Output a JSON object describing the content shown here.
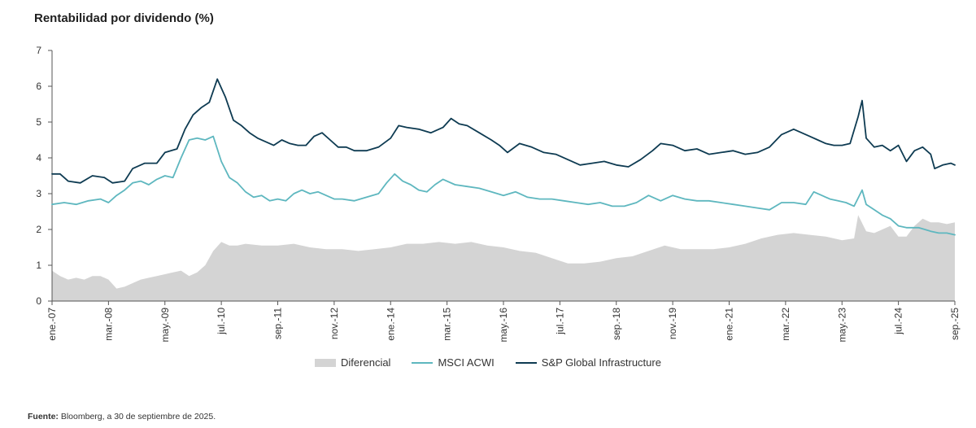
{
  "chart_data": {
    "type": "line",
    "title": "Rentabilidad por dividendo (%)",
    "xlabel": "",
    "ylabel": "",
    "ylim": [
      0,
      7
    ],
    "yticks": [
      "0",
      "1",
      "2",
      "3",
      "4",
      "5",
      "6",
      "7"
    ],
    "xticks": [
      "ene.-07",
      "mar.-08",
      "may.-09",
      "jul.-10",
      "sep.-11",
      "nov.-12",
      "ene.-14",
      "mar.-15",
      "may.-16",
      "jul.-17",
      "sep.-18",
      "nov.-19",
      "ene.-21",
      "mar.-22",
      "may.-23",
      "jul.-24",
      "sep.-25"
    ],
    "x_unit": "months since ene.-07",
    "x_range": [
      0,
      224
    ],
    "series": [
      {
        "name": "S&P Global Infrastructure",
        "kind": "line",
        "color": "#0e3b52",
        "points": [
          [
            0,
            3.55
          ],
          [
            2,
            3.55
          ],
          [
            4,
            3.35
          ],
          [
            7,
            3.3
          ],
          [
            10,
            3.5
          ],
          [
            13,
            3.45
          ],
          [
            15,
            3.3
          ],
          [
            18,
            3.35
          ],
          [
            20,
            3.7
          ],
          [
            23,
            3.85
          ],
          [
            26,
            3.85
          ],
          [
            28,
            4.15
          ],
          [
            31,
            4.25
          ],
          [
            33,
            4.8
          ],
          [
            35,
            5.2
          ],
          [
            37,
            5.4
          ],
          [
            39,
            5.55
          ],
          [
            41,
            6.2
          ],
          [
            43,
            5.7
          ],
          [
            45,
            5.05
          ],
          [
            47,
            4.9
          ],
          [
            49,
            4.7
          ],
          [
            51,
            4.55
          ],
          [
            53,
            4.45
          ],
          [
            55,
            4.35
          ],
          [
            57,
            4.5
          ],
          [
            59,
            4.4
          ],
          [
            61,
            4.35
          ],
          [
            63,
            4.35
          ],
          [
            65,
            4.6
          ],
          [
            67,
            4.7
          ],
          [
            69,
            4.5
          ],
          [
            71,
            4.3
          ],
          [
            73,
            4.3
          ],
          [
            75,
            4.2
          ],
          [
            78,
            4.2
          ],
          [
            81,
            4.3
          ],
          [
            84,
            4.55
          ],
          [
            86,
            4.9
          ],
          [
            88,
            4.85
          ],
          [
            91,
            4.8
          ],
          [
            94,
            4.7
          ],
          [
            97,
            4.85
          ],
          [
            99,
            5.1
          ],
          [
            101,
            4.95
          ],
          [
            103,
            4.9
          ],
          [
            106,
            4.7
          ],
          [
            109,
            4.5
          ],
          [
            111,
            4.35
          ],
          [
            113,
            4.15
          ],
          [
            116,
            4.4
          ],
          [
            119,
            4.3
          ],
          [
            122,
            4.15
          ],
          [
            125,
            4.1
          ],
          [
            128,
            3.95
          ],
          [
            131,
            3.8
          ],
          [
            134,
            3.85
          ],
          [
            137,
            3.9
          ],
          [
            140,
            3.8
          ],
          [
            143,
            3.75
          ],
          [
            146,
            3.95
          ],
          [
            149,
            4.2
          ],
          [
            151,
            4.4
          ],
          [
            154,
            4.35
          ],
          [
            157,
            4.2
          ],
          [
            160,
            4.25
          ],
          [
            163,
            4.1
          ],
          [
            166,
            4.15
          ],
          [
            169,
            4.2
          ],
          [
            172,
            4.1
          ],
          [
            175,
            4.15
          ],
          [
            178,
            4.3
          ],
          [
            181,
            4.65
          ],
          [
            184,
            4.8
          ],
          [
            186,
            4.7
          ],
          [
            188,
            4.6
          ],
          [
            190,
            4.5
          ],
          [
            192,
            4.4
          ],
          [
            194,
            4.35
          ],
          [
            196,
            4.35
          ],
          [
            198,
            4.4
          ],
          [
            200,
            5.15
          ],
          [
            201,
            5.6
          ],
          [
            202,
            4.55
          ],
          [
            204,
            4.3
          ],
          [
            206,
            4.35
          ],
          [
            208,
            4.2
          ],
          [
            210,
            4.35
          ],
          [
            212,
            3.9
          ],
          [
            214,
            4.2
          ],
          [
            216,
            4.3
          ],
          [
            218,
            4.1
          ],
          [
            219,
            3.7
          ],
          [
            221,
            3.8
          ],
          [
            223,
            3.85
          ],
          [
            224,
            3.8
          ]
        ]
      },
      {
        "name": "MSCI ACWI",
        "kind": "line",
        "color": "#5eb7bf",
        "points": [
          [
            0,
            2.7
          ],
          [
            3,
            2.75
          ],
          [
            6,
            2.7
          ],
          [
            9,
            2.8
          ],
          [
            12,
            2.85
          ],
          [
            14,
            2.75
          ],
          [
            16,
            2.95
          ],
          [
            18,
            3.1
          ],
          [
            20,
            3.3
          ],
          [
            22,
            3.35
          ],
          [
            24,
            3.25
          ],
          [
            26,
            3.4
          ],
          [
            28,
            3.5
          ],
          [
            30,
            3.45
          ],
          [
            32,
            4.0
          ],
          [
            34,
            4.5
          ],
          [
            36,
            4.55
          ],
          [
            38,
            4.5
          ],
          [
            40,
            4.6
          ],
          [
            42,
            3.9
          ],
          [
            44,
            3.45
          ],
          [
            46,
            3.3
          ],
          [
            48,
            3.05
          ],
          [
            50,
            2.9
          ],
          [
            52,
            2.95
          ],
          [
            54,
            2.8
          ],
          [
            56,
            2.85
          ],
          [
            58,
            2.8
          ],
          [
            60,
            3.0
          ],
          [
            62,
            3.1
          ],
          [
            64,
            3.0
          ],
          [
            66,
            3.05
          ],
          [
            68,
            2.95
          ],
          [
            70,
            2.85
          ],
          [
            72,
            2.85
          ],
          [
            75,
            2.8
          ],
          [
            78,
            2.9
          ],
          [
            81,
            3.0
          ],
          [
            83,
            3.3
          ],
          [
            85,
            3.55
          ],
          [
            87,
            3.35
          ],
          [
            89,
            3.25
          ],
          [
            91,
            3.1
          ],
          [
            93,
            3.05
          ],
          [
            95,
            3.25
          ],
          [
            97,
            3.4
          ],
          [
            100,
            3.25
          ],
          [
            103,
            3.2
          ],
          [
            106,
            3.15
          ],
          [
            109,
            3.05
          ],
          [
            112,
            2.95
          ],
          [
            115,
            3.05
          ],
          [
            118,
            2.9
          ],
          [
            121,
            2.85
          ],
          [
            124,
            2.85
          ],
          [
            127,
            2.8
          ],
          [
            130,
            2.75
          ],
          [
            133,
            2.7
          ],
          [
            136,
            2.75
          ],
          [
            139,
            2.65
          ],
          [
            142,
            2.65
          ],
          [
            145,
            2.75
          ],
          [
            148,
            2.95
          ],
          [
            151,
            2.8
          ],
          [
            154,
            2.95
          ],
          [
            157,
            2.85
          ],
          [
            160,
            2.8
          ],
          [
            163,
            2.8
          ],
          [
            166,
            2.75
          ],
          [
            169,
            2.7
          ],
          [
            172,
            2.65
          ],
          [
            175,
            2.6
          ],
          [
            178,
            2.55
          ],
          [
            181,
            2.75
          ],
          [
            184,
            2.75
          ],
          [
            187,
            2.7
          ],
          [
            189,
            3.05
          ],
          [
            191,
            2.95
          ],
          [
            193,
            2.85
          ],
          [
            195,
            2.8
          ],
          [
            197,
            2.75
          ],
          [
            199,
            2.65
          ],
          [
            201,
            3.1
          ],
          [
            202,
            2.7
          ],
          [
            204,
            2.55
          ],
          [
            206,
            2.4
          ],
          [
            208,
            2.3
          ],
          [
            210,
            2.1
          ],
          [
            212,
            2.05
          ],
          [
            215,
            2.05
          ],
          [
            218,
            1.95
          ],
          [
            220,
            1.9
          ],
          [
            222,
            1.9
          ],
          [
            224,
            1.85
          ]
        ]
      },
      {
        "name": "Diferencial",
        "kind": "area",
        "color": "#d4d4d4",
        "points": [
          [
            0,
            0.85
          ],
          [
            2,
            0.7
          ],
          [
            4,
            0.6
          ],
          [
            6,
            0.65
          ],
          [
            8,
            0.6
          ],
          [
            10,
            0.7
          ],
          [
            12,
            0.7
          ],
          [
            14,
            0.6
          ],
          [
            16,
            0.35
          ],
          [
            18,
            0.4
          ],
          [
            20,
            0.5
          ],
          [
            22,
            0.6
          ],
          [
            24,
            0.65
          ],
          [
            26,
            0.7
          ],
          [
            28,
            0.75
          ],
          [
            30,
            0.8
          ],
          [
            32,
            0.85
          ],
          [
            34,
            0.7
          ],
          [
            36,
            0.8
          ],
          [
            38,
            1.0
          ],
          [
            40,
            1.4
          ],
          [
            42,
            1.65
          ],
          [
            44,
            1.55
          ],
          [
            46,
            1.55
          ],
          [
            48,
            1.6
          ],
          [
            52,
            1.55
          ],
          [
            56,
            1.55
          ],
          [
            60,
            1.6
          ],
          [
            64,
            1.5
          ],
          [
            68,
            1.45
          ],
          [
            72,
            1.45
          ],
          [
            76,
            1.4
          ],
          [
            80,
            1.45
          ],
          [
            84,
            1.5
          ],
          [
            88,
            1.6
          ],
          [
            92,
            1.6
          ],
          [
            96,
            1.65
          ],
          [
            100,
            1.6
          ],
          [
            104,
            1.65
          ],
          [
            108,
            1.55
          ],
          [
            112,
            1.5
          ],
          [
            116,
            1.4
          ],
          [
            120,
            1.35
          ],
          [
            124,
            1.2
          ],
          [
            128,
            1.05
          ],
          [
            132,
            1.05
          ],
          [
            136,
            1.1
          ],
          [
            140,
            1.2
          ],
          [
            144,
            1.25
          ],
          [
            148,
            1.4
          ],
          [
            152,
            1.55
          ],
          [
            156,
            1.45
          ],
          [
            160,
            1.45
          ],
          [
            164,
            1.45
          ],
          [
            168,
            1.5
          ],
          [
            172,
            1.6
          ],
          [
            176,
            1.75
          ],
          [
            180,
            1.85
          ],
          [
            184,
            1.9
          ],
          [
            188,
            1.85
          ],
          [
            192,
            1.8
          ],
          [
            196,
            1.7
          ],
          [
            199,
            1.75
          ],
          [
            200,
            2.4
          ],
          [
            202,
            1.95
          ],
          [
            204,
            1.9
          ],
          [
            206,
            2.0
          ],
          [
            208,
            2.1
          ],
          [
            210,
            1.8
          ],
          [
            212,
            1.8
          ],
          [
            214,
            2.1
          ],
          [
            216,
            2.3
          ],
          [
            218,
            2.2
          ],
          [
            220,
            2.2
          ],
          [
            222,
            2.15
          ],
          [
            224,
            2.2
          ]
        ]
      }
    ],
    "legend": [
      "Diferencial",
      "MSCI ACWI",
      "S&P Global Infrastructure"
    ],
    "legend_position": "bottom-center",
    "grid": false
  },
  "source": {
    "label": "Fuente:",
    "text": " Bloomberg, a 30 de septiembre de 2025."
  }
}
